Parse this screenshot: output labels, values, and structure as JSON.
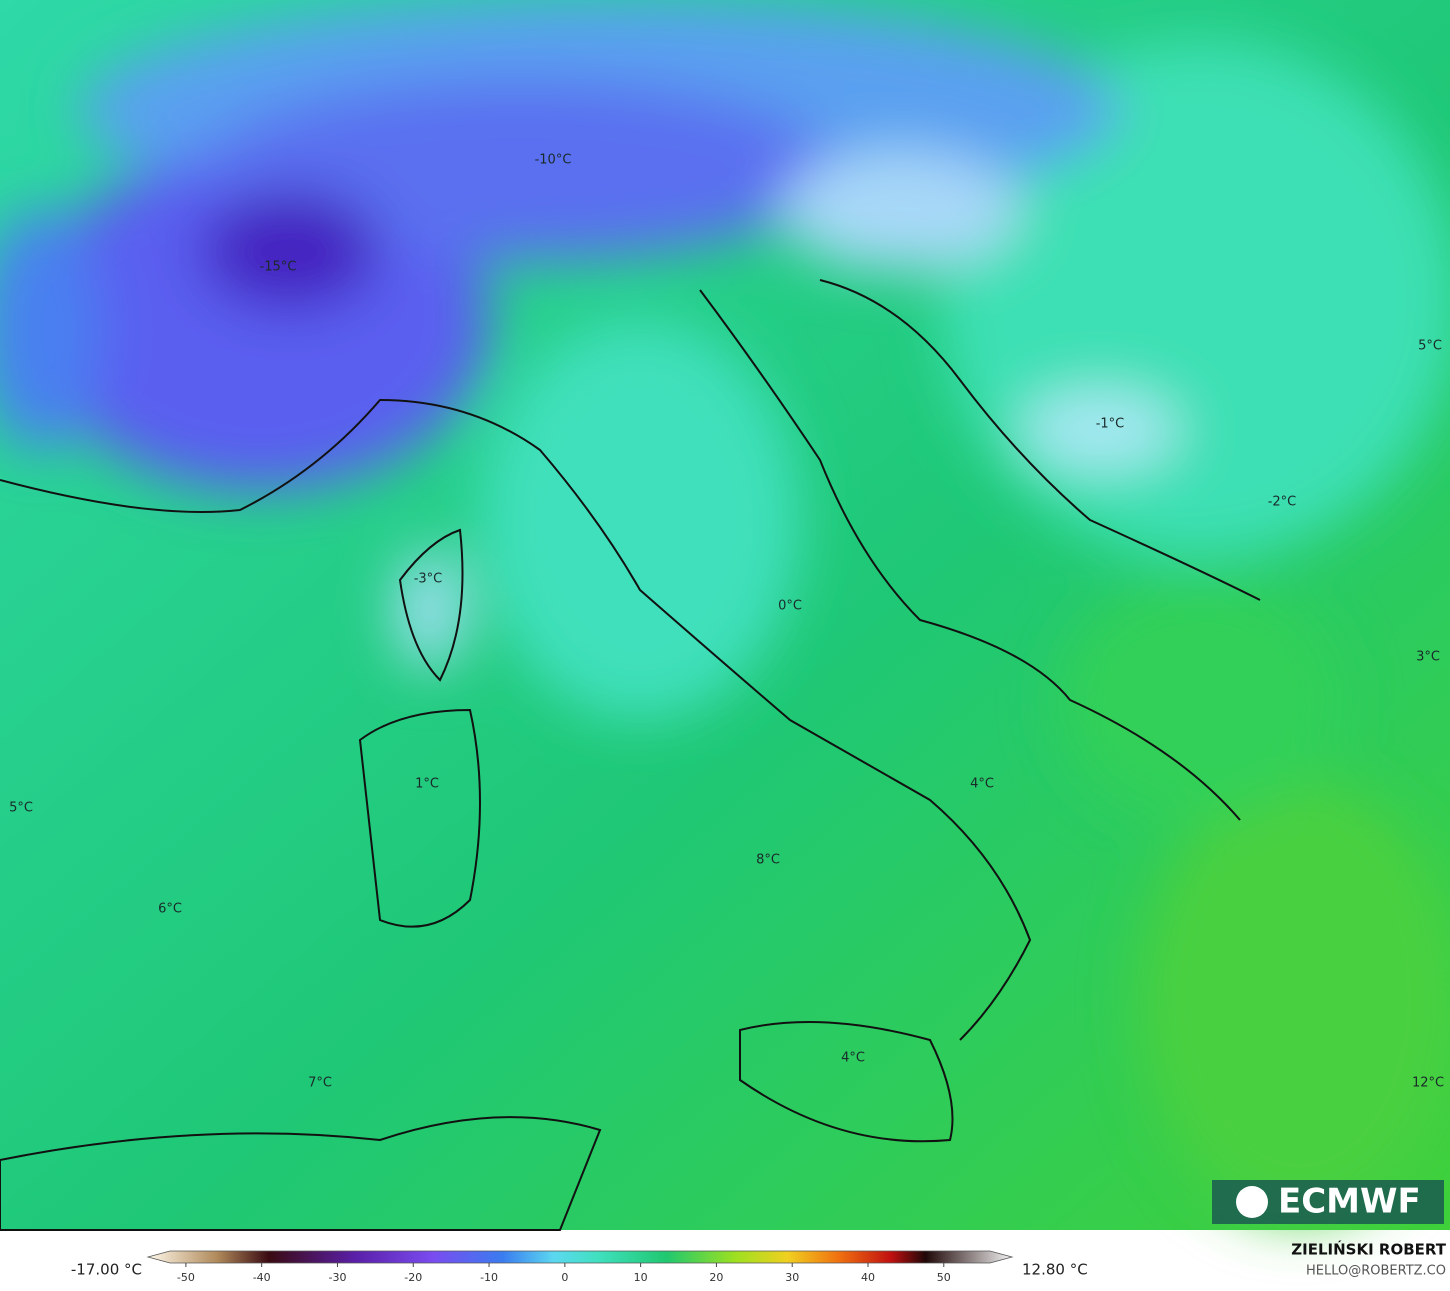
{
  "map": {
    "labels": [
      {
        "text": "-10°C"
      },
      {
        "text": "-15°C"
      },
      {
        "text": "-3°C"
      },
      {
        "text": "-1°C"
      },
      {
        "text": "-2°C"
      },
      {
        "text": "5°C"
      },
      {
        "text": "0°C"
      },
      {
        "text": "3°C"
      },
      {
        "text": "1°C"
      },
      {
        "text": "4°C"
      },
      {
        "text": "5°C"
      },
      {
        "text": "8°C"
      },
      {
        "text": "6°C"
      },
      {
        "text": "4°C"
      },
      {
        "text": "7°C"
      },
      {
        "text": "12°C"
      }
    ],
    "logo": "ECMWF",
    "min_label": "-17.00 °C",
    "max_label": "12.80 °C",
    "colorbar": {
      "lim": [
        -55,
        59
      ],
      "ticks": [
        -50,
        -40,
        -30,
        -20,
        -10,
        0,
        10,
        20,
        30,
        40,
        50
      ]
    },
    "author": "ZIELIŃSKI ROBERT",
    "email": "HELLO@ROBERTZ.CO"
  }
}
